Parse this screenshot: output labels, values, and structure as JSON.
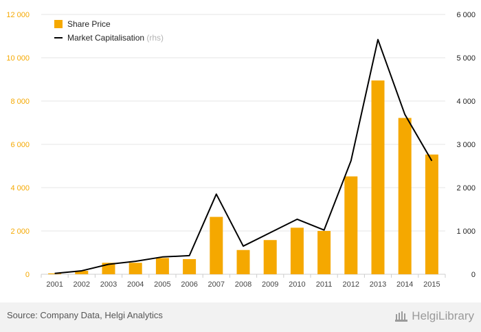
{
  "chart_data": {
    "type": "bar",
    "categories": [
      "2001",
      "2002",
      "2003",
      "2004",
      "2005",
      "2006",
      "2007",
      "2008",
      "2009",
      "2010",
      "2011",
      "2012",
      "2013",
      "2014",
      "2015"
    ],
    "series": [
      {
        "name": "Share Price",
        "type": "bar",
        "axis": "left",
        "color": "#f5a800",
        "values": [
          40,
          160,
          530,
          530,
          750,
          700,
          2650,
          1120,
          1580,
          2150,
          2000,
          4520,
          8950,
          7220,
          5530
        ]
      },
      {
        "name": "Market Capitalisation",
        "name_suffix": "(rhs)",
        "type": "line",
        "axis": "right",
        "color": "#000000",
        "values": [
          20,
          80,
          230,
          300,
          400,
          430,
          1850,
          650,
          960,
          1270,
          1020,
          2620,
          5420,
          3690,
          2620
        ]
      }
    ],
    "y_left": {
      "ylim": [
        0,
        12000
      ],
      "ticks": [
        "0",
        "2 000",
        "4 000",
        "6 000",
        "8 000",
        "10 000",
        "12 000"
      ],
      "tick_values": [
        0,
        2000,
        4000,
        6000,
        8000,
        10000,
        12000
      ]
    },
    "y_right": {
      "ylim": [
        0,
        6000
      ],
      "ticks": [
        "0",
        "1 000",
        "2 000",
        "3 000",
        "4 000",
        "5 000",
        "6 000"
      ],
      "tick_values": [
        0,
        1000,
        2000,
        3000,
        4000,
        5000,
        6000
      ]
    },
    "grid": true,
    "legend_position": "top-left"
  },
  "footer": {
    "source": "Source: Company Data, Helgi Analytics",
    "logo_text": "HelgiLibrary"
  }
}
